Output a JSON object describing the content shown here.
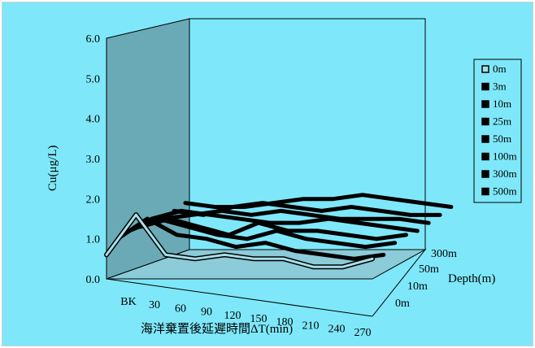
{
  "chart_data": {
    "type": "line",
    "subtype": "3d-ribbon",
    "ylabel": "Cu(μg/L)",
    "xlabel": "海洋棄置後延遲時間ΔT(min)",
    "zlabel": "Depth(m)",
    "categories": [
      "BK",
      "30",
      "60",
      "90",
      "120",
      "150",
      "180",
      "210",
      "240",
      "270"
    ],
    "y_ticks": [
      "0.0",
      "1.0",
      "2.0",
      "3.0",
      "4.0",
      "5.0",
      "6.0"
    ],
    "ylim": [
      0,
      6
    ],
    "depth_ticks": [
      "0m",
      "10m",
      "50m",
      "300m"
    ],
    "legend_title": "",
    "legend": [
      "0m",
      "3m",
      "10m",
      "25m",
      "50m",
      "100m",
      "300m",
      "500m"
    ],
    "series": [
      {
        "name": "0m",
        "values": [
          0.6,
          1.6,
          0.6,
          0.5,
          0.6,
          0.5,
          0.5,
          0.3,
          0.3,
          0.5
        ]
      },
      {
        "name": "3m",
        "values": [
          0.9,
          1.4,
          1.0,
          0.9,
          0.7,
          0.8,
          0.6,
          0.5,
          0.4,
          0.5
        ]
      },
      {
        "name": "10m",
        "values": [
          1.0,
          1.3,
          1.1,
          0.9,
          0.8,
          1.0,
          0.8,
          0.7,
          0.6,
          0.7
        ]
      },
      {
        "name": "25m",
        "values": [
          1.0,
          1.2,
          1.0,
          0.8,
          1.1,
          0.9,
          0.9,
          0.8,
          0.7,
          0.8
        ]
      },
      {
        "name": "50m",
        "values": [
          1.1,
          1.3,
          1.2,
          1.1,
          1.0,
          1.0,
          1.1,
          1.0,
          0.9,
          0.8
        ]
      },
      {
        "name": "100m",
        "values": [
          1.0,
          1.1,
          1.2,
          1.1,
          1.2,
          1.1,
          1.0,
          1.0,
          1.0,
          0.9
        ]
      },
      {
        "name": "300m",
        "values": [
          1.1,
          1.0,
          1.2,
          1.3,
          1.2,
          1.1,
          1.2,
          1.1,
          1.0,
          1.0
        ]
      },
      {
        "name": "500m",
        "values": [
          1.2,
          1.1,
          1.1,
          1.2,
          1.3,
          1.3,
          1.4,
          1.3,
          1.2,
          1.1
        ]
      }
    ],
    "colors": {
      "background": "#7ee8fa",
      "wall": "#6aaab6",
      "floor": "#8ccbd8",
      "front_series": "#a8dfe8",
      "series": "#000000"
    },
    "grid": false,
    "legend_position": "right"
  }
}
